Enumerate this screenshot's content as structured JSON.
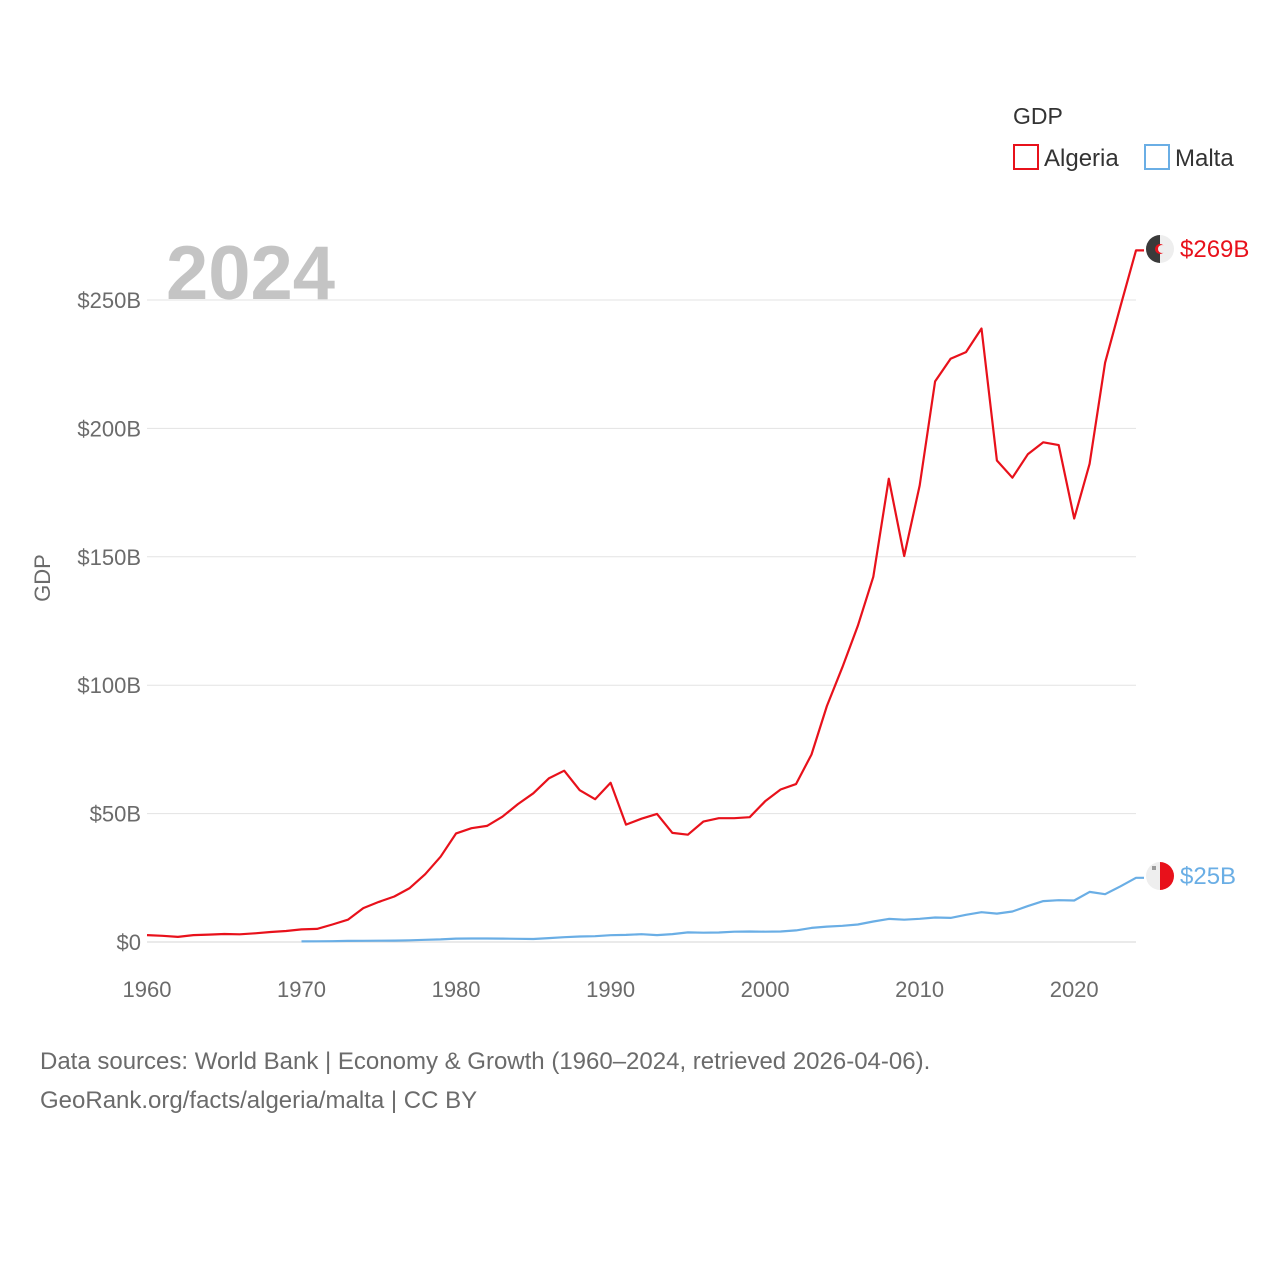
{
  "chart_data": {
    "type": "line",
    "year_label": "2024",
    "ylabel": "GDP",
    "xlim": [
      1960,
      2024
    ],
    "ylim": [
      0,
      250
    ],
    "x_ticks": [
      {
        "value": 1960,
        "label": "1960"
      },
      {
        "value": 1970,
        "label": "1970"
      },
      {
        "value": 1980,
        "label": "1980"
      },
      {
        "value": 1990,
        "label": "1990"
      },
      {
        "value": 2000,
        "label": "2000"
      },
      {
        "value": 2010,
        "label": "2010"
      },
      {
        "value": 2020,
        "label": "2020"
      }
    ],
    "y_ticks": [
      {
        "value": 0,
        "label": "$0"
      },
      {
        "value": 50,
        "label": "$50B"
      },
      {
        "value": 100,
        "label": "$100B"
      },
      {
        "value": 150,
        "label": "$150B"
      },
      {
        "value": 200,
        "label": "$200B"
      },
      {
        "value": 250,
        "label": "$250B"
      }
    ],
    "legend": {
      "title": "GDP",
      "position": "top-right"
    },
    "series": [
      {
        "name": "Algeria",
        "color": "#e8111b",
        "end_label": "$269B",
        "start_year": 1960,
        "values": [
          2.7,
          2.4,
          2.0,
          2.7,
          2.9,
          3.1,
          3.0,
          3.4,
          3.9,
          4.3,
          4.9,
          5.1,
          6.8,
          8.7,
          13.2,
          15.6,
          17.7,
          21.0,
          26.4,
          33.2,
          42.3,
          44.3,
          45.2,
          48.8,
          53.7,
          57.9,
          63.7,
          66.7,
          59.1,
          55.6,
          62.0,
          45.7,
          48.0,
          49.9,
          42.5,
          41.8,
          46.9,
          48.2,
          48.2,
          48.6,
          54.8,
          59.4,
          61.5,
          73.0,
          91.9,
          107.0,
          123.1,
          142.2,
          180.4,
          150.3,
          177.8,
          218.3,
          227.1,
          229.7,
          238.9,
          187.5,
          180.8,
          189.9,
          194.6,
          193.5,
          164.9,
          186.2,
          225.6,
          247.6,
          269.3
        ]
      },
      {
        "name": "Malta",
        "color": "#6aaee5",
        "end_label": "$25B",
        "start_year": 1970,
        "values": [
          0.25,
          0.27,
          0.33,
          0.42,
          0.45,
          0.5,
          0.56,
          0.67,
          0.85,
          1.03,
          1.33,
          1.35,
          1.38,
          1.33,
          1.24,
          1.17,
          1.5,
          1.88,
          2.13,
          2.24,
          2.65,
          2.78,
          3.04,
          2.69,
          3.06,
          3.73,
          3.62,
          3.7,
          4.0,
          4.1,
          4.01,
          4.1,
          4.5,
          5.5,
          6.0,
          6.3,
          6.8,
          8.0,
          9.0,
          8.7,
          9.03,
          9.55,
          9.4,
          10.6,
          11.6,
          11.07,
          11.89,
          13.99,
          15.92,
          16.26,
          16.17,
          19.51,
          18.6,
          21.7,
          25.0
        ]
      }
    ]
  },
  "footer": {
    "line1": "Data sources: World Bank | Economy & Growth (1960–2024, retrieved 2026-04-06).",
    "line2": "GeoRank.org/facts/algeria/malta | CC BY"
  }
}
